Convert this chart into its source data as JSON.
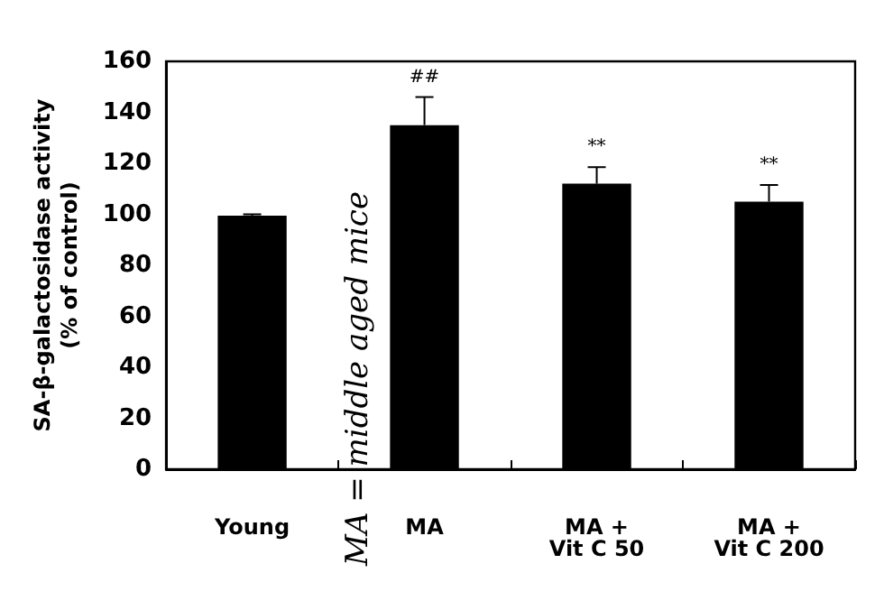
{
  "chart_data": {
    "type": "bar",
    "ylabel": "SA-β-galactosidase activity\n(% of control)",
    "categories": [
      "Young",
      "MA",
      "MA +\nVit C 50",
      "MA +\nVit C 200"
    ],
    "values": [
      99.5,
      135,
      112,
      105
    ],
    "color": "#000000",
    "errors": [
      [
        99.5,
        100
      ],
      [
        135,
        146
      ],
      [
        112,
        118.5
      ],
      [
        105,
        111.5
      ]
    ],
    "ylim": [
      0,
      160
    ],
    "yticks": [
      0,
      20,
      40,
      60,
      80,
      100,
      120,
      140,
      160
    ],
    "grid": false,
    "annotations": [
      {
        "text": "##",
        "x": "MA",
        "y": 146
      },
      {
        "text": "**",
        "x": "MA +\nVit C 50",
        "y": 118.5
      },
      {
        "text": "**",
        "x": "MA +\nVit C 200",
        "y": 111.5
      },
      "MA = middle aged mice"
    ]
  }
}
